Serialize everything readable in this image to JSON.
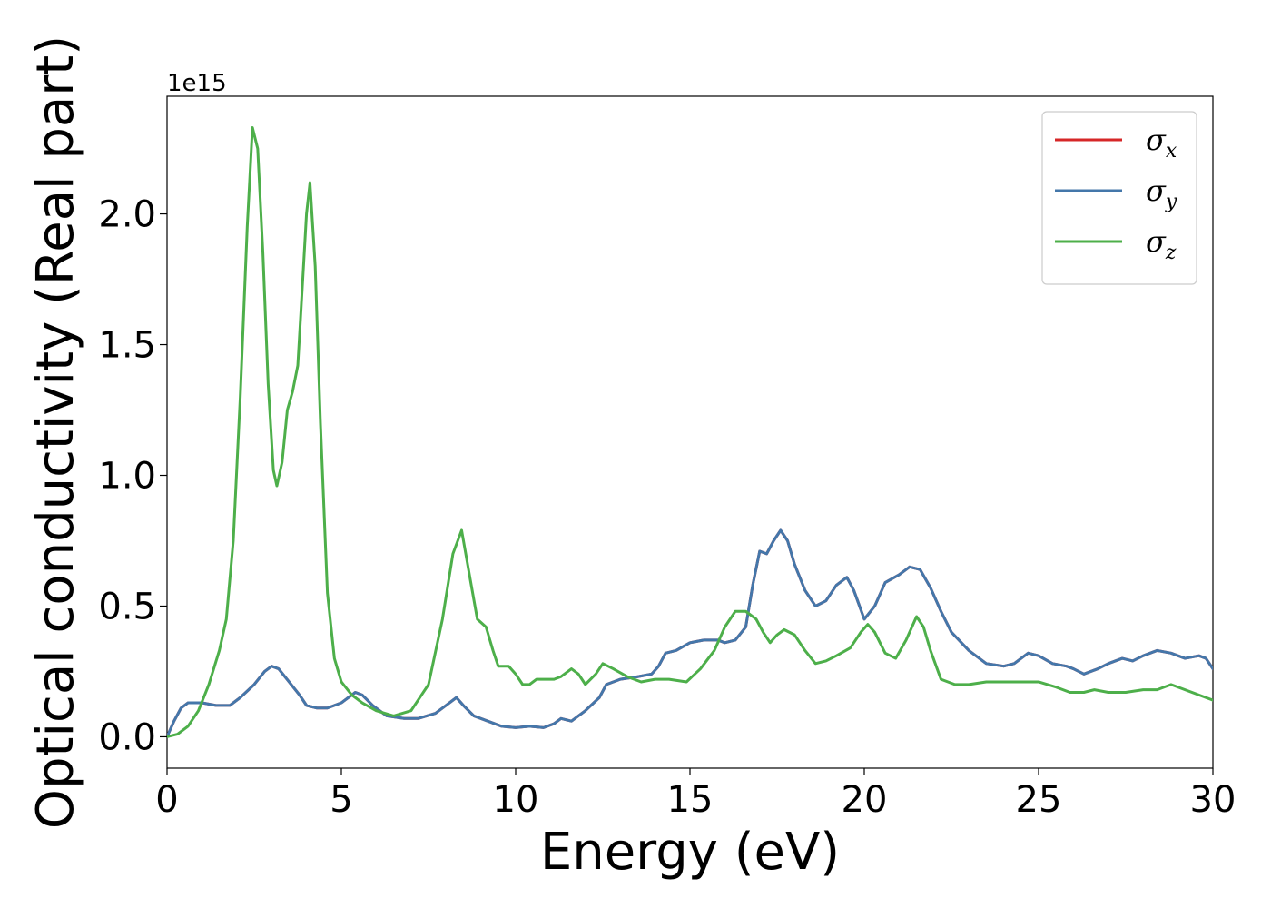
{
  "chart_data": {
    "type": "line",
    "xlabel": "Energy (eV)",
    "ylabel": "Optical conductivity (Real part)",
    "y_offset_label": "1e15",
    "y_scale": 1000000000000000.0,
    "xlim": [
      0,
      30
    ],
    "ylim": [
      -0.12,
      2.45
    ],
    "xticks": [
      0,
      5,
      10,
      15,
      20,
      25,
      30
    ],
    "xtick_labels": [
      "0",
      "5",
      "10",
      "15",
      "20",
      "25",
      "30"
    ],
    "yticks": [
      0.0,
      0.5,
      1.0,
      1.5,
      2.0
    ],
    "ytick_labels": [
      "0.0",
      "0.5",
      "1.0",
      "1.5",
      "2.0"
    ],
    "grid": false,
    "legend_position": "top-right",
    "series": [
      {
        "name": "σx",
        "symbol": "σ",
        "subscript": "x",
        "color": "#d62728",
        "same_as": "σy"
      },
      {
        "name": "σy",
        "symbol": "σ",
        "subscript": "y",
        "color": "#4477aa",
        "points": [
          [
            0,
            0
          ],
          [
            0.2,
            0.06
          ],
          [
            0.4,
            0.11
          ],
          [
            0.6,
            0.13
          ],
          [
            1.0,
            0.13
          ],
          [
            1.4,
            0.12
          ],
          [
            1.8,
            0.12
          ],
          [
            2.1,
            0.15
          ],
          [
            2.5,
            0.2
          ],
          [
            2.8,
            0.25
          ],
          [
            3.0,
            0.27
          ],
          [
            3.2,
            0.26
          ],
          [
            3.5,
            0.21
          ],
          [
            3.8,
            0.16
          ],
          [
            4.0,
            0.12
          ],
          [
            4.3,
            0.11
          ],
          [
            4.6,
            0.11
          ],
          [
            5.0,
            0.13
          ],
          [
            5.2,
            0.15
          ],
          [
            5.4,
            0.17
          ],
          [
            5.6,
            0.16
          ],
          [
            5.9,
            0.12
          ],
          [
            6.3,
            0.08
          ],
          [
            6.8,
            0.07
          ],
          [
            7.2,
            0.07
          ],
          [
            7.7,
            0.09
          ],
          [
            8.0,
            0.12
          ],
          [
            8.3,
            0.15
          ],
          [
            8.5,
            0.12
          ],
          [
            8.8,
            0.08
          ],
          [
            9.2,
            0.06
          ],
          [
            9.6,
            0.04
          ],
          [
            10.0,
            0.035
          ],
          [
            10.4,
            0.04
          ],
          [
            10.8,
            0.035
          ],
          [
            11.1,
            0.05
          ],
          [
            11.3,
            0.07
          ],
          [
            11.6,
            0.06
          ],
          [
            12.0,
            0.1
          ],
          [
            12.4,
            0.15
          ],
          [
            12.6,
            0.2
          ],
          [
            13.0,
            0.22
          ],
          [
            13.5,
            0.23
          ],
          [
            13.9,
            0.24
          ],
          [
            14.1,
            0.27
          ],
          [
            14.3,
            0.32
          ],
          [
            14.6,
            0.33
          ],
          [
            15.0,
            0.36
          ],
          [
            15.4,
            0.37
          ],
          [
            15.8,
            0.37
          ],
          [
            16.0,
            0.36
          ],
          [
            16.3,
            0.37
          ],
          [
            16.6,
            0.42
          ],
          [
            16.8,
            0.58
          ],
          [
            17.0,
            0.71
          ],
          [
            17.2,
            0.7
          ],
          [
            17.4,
            0.75
          ],
          [
            17.6,
            0.79
          ],
          [
            17.8,
            0.75
          ],
          [
            18.0,
            0.66
          ],
          [
            18.3,
            0.56
          ],
          [
            18.6,
            0.5
          ],
          [
            18.9,
            0.52
          ],
          [
            19.2,
            0.58
          ],
          [
            19.5,
            0.61
          ],
          [
            19.7,
            0.56
          ],
          [
            20.0,
            0.45
          ],
          [
            20.3,
            0.5
          ],
          [
            20.6,
            0.59
          ],
          [
            21.0,
            0.62
          ],
          [
            21.3,
            0.65
          ],
          [
            21.6,
            0.64
          ],
          [
            21.9,
            0.57
          ],
          [
            22.2,
            0.48
          ],
          [
            22.5,
            0.4
          ],
          [
            23.0,
            0.33
          ],
          [
            23.5,
            0.28
          ],
          [
            24.0,
            0.27
          ],
          [
            24.3,
            0.28
          ],
          [
            24.7,
            0.32
          ],
          [
            25.0,
            0.31
          ],
          [
            25.4,
            0.28
          ],
          [
            25.8,
            0.27
          ],
          [
            26.0,
            0.26
          ],
          [
            26.3,
            0.24
          ],
          [
            26.7,
            0.26
          ],
          [
            27.0,
            0.28
          ],
          [
            27.4,
            0.3
          ],
          [
            27.7,
            0.29
          ],
          [
            28.0,
            0.31
          ],
          [
            28.4,
            0.33
          ],
          [
            28.8,
            0.32
          ],
          [
            29.2,
            0.3
          ],
          [
            29.6,
            0.31
          ],
          [
            29.8,
            0.3
          ],
          [
            30.0,
            0.26
          ]
        ]
      },
      {
        "name": "σz",
        "symbol": "σ",
        "subscript": "z",
        "color": "#4daf4a",
        "points": [
          [
            0,
            0
          ],
          [
            0.3,
            0.01
          ],
          [
            0.6,
            0.04
          ],
          [
            0.9,
            0.1
          ],
          [
            1.2,
            0.2
          ],
          [
            1.5,
            0.33
          ],
          [
            1.7,
            0.45
          ],
          [
            1.9,
            0.75
          ],
          [
            2.1,
            1.3
          ],
          [
            2.3,
            1.95
          ],
          [
            2.45,
            2.33
          ],
          [
            2.6,
            2.25
          ],
          [
            2.75,
            1.85
          ],
          [
            2.9,
            1.35
          ],
          [
            3.05,
            1.02
          ],
          [
            3.15,
            0.96
          ],
          [
            3.3,
            1.05
          ],
          [
            3.45,
            1.25
          ],
          [
            3.6,
            1.32
          ],
          [
            3.75,
            1.42
          ],
          [
            3.85,
            1.65
          ],
          [
            4.0,
            2.0
          ],
          [
            4.1,
            2.12
          ],
          [
            4.25,
            1.8
          ],
          [
            4.4,
            1.2
          ],
          [
            4.6,
            0.55
          ],
          [
            4.8,
            0.3
          ],
          [
            5.0,
            0.21
          ],
          [
            5.3,
            0.16
          ],
          [
            5.6,
            0.13
          ],
          [
            6.0,
            0.1
          ],
          [
            6.5,
            0.08
          ],
          [
            7.0,
            0.1
          ],
          [
            7.5,
            0.2
          ],
          [
            7.9,
            0.45
          ],
          [
            8.2,
            0.7
          ],
          [
            8.45,
            0.79
          ],
          [
            8.7,
            0.6
          ],
          [
            8.9,
            0.45
          ],
          [
            9.15,
            0.42
          ],
          [
            9.35,
            0.33
          ],
          [
            9.5,
            0.27
          ],
          [
            9.8,
            0.27
          ],
          [
            10.0,
            0.24
          ],
          [
            10.2,
            0.2
          ],
          [
            10.4,
            0.2
          ],
          [
            10.6,
            0.22
          ],
          [
            10.8,
            0.22
          ],
          [
            11.1,
            0.22
          ],
          [
            11.3,
            0.23
          ],
          [
            11.6,
            0.26
          ],
          [
            11.8,
            0.24
          ],
          [
            12.0,
            0.2
          ],
          [
            12.3,
            0.24
          ],
          [
            12.5,
            0.28
          ],
          [
            12.8,
            0.26
          ],
          [
            13.2,
            0.23
          ],
          [
            13.6,
            0.21
          ],
          [
            14.0,
            0.22
          ],
          [
            14.4,
            0.22
          ],
          [
            14.9,
            0.21
          ],
          [
            15.3,
            0.26
          ],
          [
            15.7,
            0.33
          ],
          [
            16.0,
            0.42
          ],
          [
            16.3,
            0.48
          ],
          [
            16.6,
            0.48
          ],
          [
            16.9,
            0.45
          ],
          [
            17.1,
            0.4
          ],
          [
            17.3,
            0.36
          ],
          [
            17.5,
            0.39
          ],
          [
            17.7,
            0.41
          ],
          [
            18.0,
            0.39
          ],
          [
            18.3,
            0.33
          ],
          [
            18.6,
            0.28
          ],
          [
            18.9,
            0.29
          ],
          [
            19.2,
            0.31
          ],
          [
            19.6,
            0.34
          ],
          [
            19.9,
            0.4
          ],
          [
            20.1,
            0.43
          ],
          [
            20.3,
            0.4
          ],
          [
            20.6,
            0.32
          ],
          [
            20.9,
            0.3
          ],
          [
            21.2,
            0.37
          ],
          [
            21.5,
            0.46
          ],
          [
            21.7,
            0.42
          ],
          [
            21.9,
            0.33
          ],
          [
            22.2,
            0.22
          ],
          [
            22.6,
            0.2
          ],
          [
            23.0,
            0.2
          ],
          [
            23.5,
            0.21
          ],
          [
            24.0,
            0.21
          ],
          [
            24.5,
            0.21
          ],
          [
            25.0,
            0.21
          ],
          [
            25.5,
            0.19
          ],
          [
            25.9,
            0.17
          ],
          [
            26.3,
            0.17
          ],
          [
            26.6,
            0.18
          ],
          [
            27.0,
            0.17
          ],
          [
            27.5,
            0.17
          ],
          [
            28.0,
            0.18
          ],
          [
            28.4,
            0.18
          ],
          [
            28.8,
            0.2
          ],
          [
            29.2,
            0.18
          ],
          [
            29.6,
            0.16
          ],
          [
            30.0,
            0.14
          ]
        ]
      }
    ]
  }
}
